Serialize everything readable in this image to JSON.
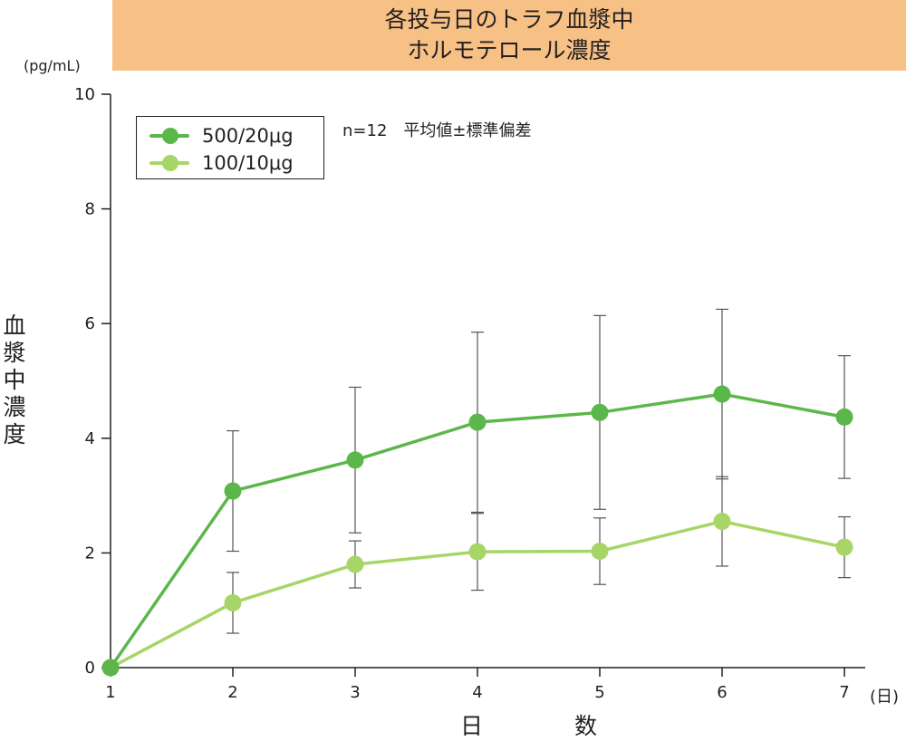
{
  "chart_data": {
    "type": "line",
    "title_lines": [
      "各投与日のトラフ血漿中",
      "ホルモテロール濃度"
    ],
    "ylabel": "血漿中濃度",
    "xlabel": "日　数",
    "y_unit": "(pg/mL)",
    "x_unit": "(日)",
    "note": "n=12　平均値±標準偏差",
    "x": [
      1,
      2,
      3,
      4,
      5,
      6,
      7
    ],
    "xlim": [
      1,
      7
    ],
    "ylim": [
      0,
      10
    ],
    "yticks": [
      0,
      2,
      4,
      6,
      8,
      10
    ],
    "grid": false,
    "legend_position": "top-left",
    "series": [
      {
        "name": "500/20μg",
        "color": "#5cb74b",
        "values": [
          0,
          3.08,
          3.62,
          4.28,
          4.45,
          4.77,
          4.37
        ],
        "error": [
          0,
          1.05,
          1.27,
          1.57,
          1.69,
          1.48,
          1.07
        ]
      },
      {
        "name": "100/10μg",
        "color": "#a7d567",
        "values": [
          0,
          1.13,
          1.8,
          2.02,
          2.03,
          2.55,
          2.1
        ],
        "error": [
          0,
          0.53,
          0.41,
          0.67,
          0.58,
          0.78,
          0.53
        ]
      }
    ]
  }
}
